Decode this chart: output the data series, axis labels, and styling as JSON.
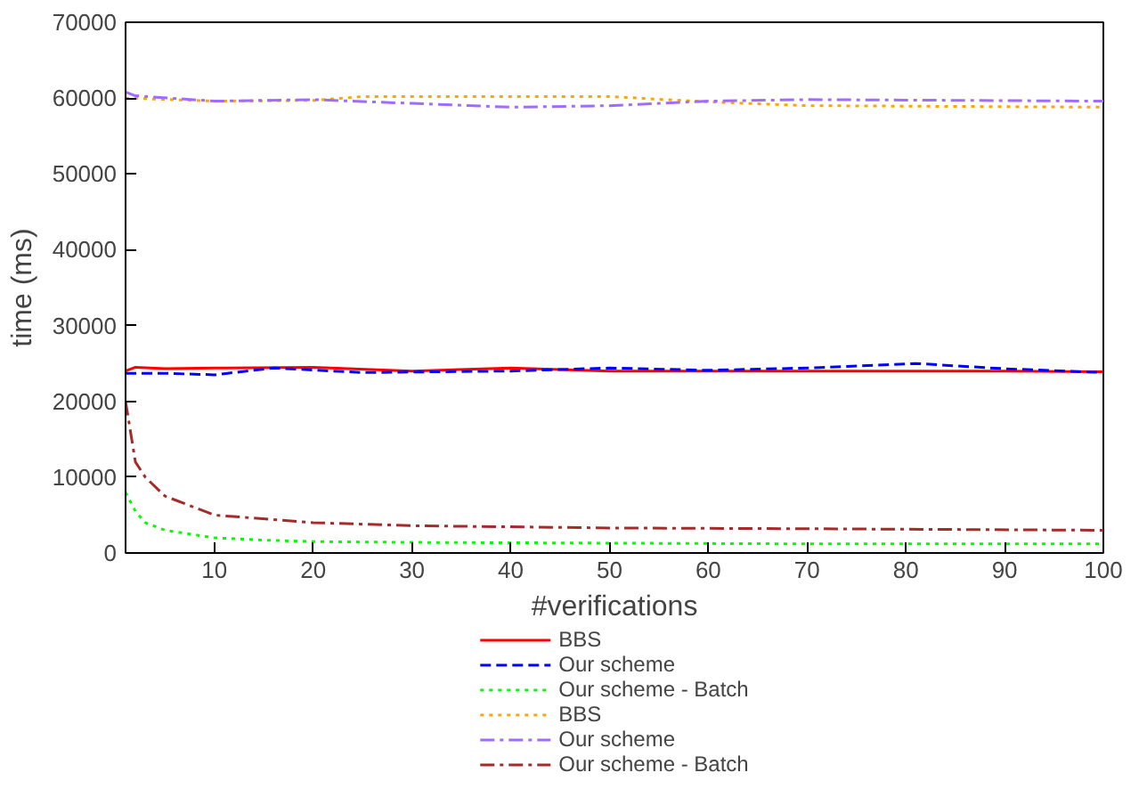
{
  "chart_data": {
    "type": "line",
    "xlabel": "#verifications",
    "ylabel": "time (ms)",
    "xlim": [
      1,
      100
    ],
    "ylim": [
      0,
      70000
    ],
    "xticks": [
      10,
      20,
      30,
      40,
      50,
      60,
      70,
      80,
      90,
      100
    ],
    "yticks": [
      0,
      10000,
      20000,
      30000,
      40000,
      50000,
      60000,
      70000
    ],
    "grid": false,
    "legend": "bottom",
    "marker": "none",
    "series": [
      {
        "name": "BBS",
        "color": "#ff0000",
        "line_style": "solid",
        "x": [
          1,
          2,
          5,
          10,
          20,
          30,
          40,
          50,
          60,
          70,
          80,
          90,
          100
        ],
        "values": [
          24000,
          24500,
          24300,
          24400,
          24500,
          24000,
          24400,
          24000,
          24000,
          24000,
          24000,
          24000,
          23900
        ]
      },
      {
        "name": "Our scheme",
        "color": "#0000ff",
        "line_style": "dashed",
        "x": [
          1,
          5,
          10,
          16,
          25,
          40,
          50,
          60,
          70,
          81,
          90,
          100
        ],
        "values": [
          23700,
          23700,
          23500,
          24400,
          23800,
          24000,
          24400,
          24100,
          24400,
          25000,
          24300,
          23800
        ]
      },
      {
        "name": "Our scheme - Batch",
        "color": "#00ff00",
        "line_style": "dotted",
        "x": [
          1,
          2,
          3,
          5,
          10,
          15,
          20,
          30,
          50,
          70,
          100
        ],
        "values": [
          8000,
          5500,
          4000,
          3000,
          2000,
          1700,
          1500,
          1400,
          1300,
          1200,
          1200
        ]
      },
      {
        "name": "BBS",
        "color": "#ffa500",
        "line_style": "dotted",
        "x": [
          1,
          10,
          20,
          25,
          50,
          60,
          70,
          100
        ],
        "values": [
          60000,
          59600,
          59700,
          60200,
          60200,
          59500,
          59000,
          58800
        ]
      },
      {
        "name": "Our scheme",
        "color": "#a06cff",
        "line_style": "dashdot",
        "x": [
          1,
          2,
          10,
          20,
          30,
          40,
          50,
          60,
          70,
          100
        ],
        "values": [
          60800,
          60300,
          59600,
          59800,
          59300,
          58800,
          59000,
          59600,
          59800,
          59600
        ]
      },
      {
        "name": "Our scheme - Batch",
        "color": "#a52a2a",
        "line_style": "dashdot",
        "x": [
          1,
          2,
          3,
          5,
          10,
          20,
          30,
          50,
          70,
          100
        ],
        "values": [
          20000,
          12000,
          10000,
          7500,
          5000,
          4000,
          3600,
          3300,
          3200,
          3000
        ]
      }
    ]
  }
}
